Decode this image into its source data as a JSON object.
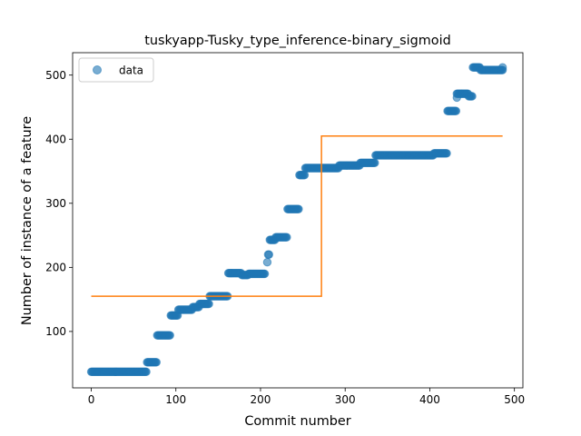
{
  "chart_data": {
    "type": "scatter",
    "title": "tuskyapp-Tusky_type_inference-binary_sigmoid",
    "xlabel": "Commit number",
    "ylabel": "Number of instance of a feature",
    "xlim": [
      -22,
      510
    ],
    "ylim": [
      12,
      535
    ],
    "x_ticks": [
      0,
      100,
      200,
      300,
      400,
      500
    ],
    "y_ticks": [
      100,
      200,
      300,
      400,
      500
    ],
    "grid": false,
    "legend": {
      "position": "top-left",
      "entries": [
        "data"
      ]
    },
    "series": [
      {
        "name": "data",
        "kind": "points",
        "color": "#1f77b4",
        "segments": [
          {
            "x_start": 0,
            "x_end": 66,
            "y": 37
          },
          {
            "x_start": 66,
            "x_end": 78,
            "y": 52
          },
          {
            "x_start": 78,
            "x_end": 94,
            "y": 94
          },
          {
            "x_start": 94,
            "x_end": 103,
            "y": 125
          },
          {
            "x_start": 103,
            "x_end": 120,
            "y": 134
          },
          {
            "x_start": 120,
            "x_end": 128,
            "y": 138
          },
          {
            "x_start": 128,
            "x_end": 140,
            "y": 143
          },
          {
            "x_start": 140,
            "x_end": 162,
            "y": 155
          },
          {
            "x_start": 162,
            "x_end": 178,
            "y": 191
          },
          {
            "x_start": 178,
            "x_end": 186,
            "y": 188
          },
          {
            "x_start": 186,
            "x_end": 206,
            "y": 190
          },
          {
            "x_start": 209,
            "x_end": 211,
            "y": 220
          },
          {
            "x_start": 211,
            "x_end": 218,
            "y": 243
          },
          {
            "x_start": 218,
            "x_end": 232,
            "y": 247
          },
          {
            "x_start": 232,
            "x_end": 246,
            "y": 291
          },
          {
            "x_start": 246,
            "x_end": 253,
            "y": 344
          },
          {
            "x_start": 253,
            "x_end": 293,
            "y": 355
          },
          {
            "x_start": 293,
            "x_end": 318,
            "y": 359
          },
          {
            "x_start": 318,
            "x_end": 336,
            "y": 363
          },
          {
            "x_start": 336,
            "x_end": 405,
            "y": 375
          },
          {
            "x_start": 405,
            "x_end": 421,
            "y": 378
          },
          {
            "x_start": 421,
            "x_end": 432,
            "y": 444
          },
          {
            "x_start": 432,
            "x_end": 446,
            "y": 471
          },
          {
            "x_start": 446,
            "x_end": 451,
            "y": 467
          },
          {
            "x_start": 451,
            "x_end": 460,
            "y": 512
          },
          {
            "x_start": 460,
            "x_end": 487,
            "y": 508
          }
        ],
        "extra_points": [
          {
            "x": 208,
            "y": 208
          },
          {
            "x": 432,
            "y": 465
          },
          {
            "x": 486,
            "y": 512
          }
        ]
      },
      {
        "kind": "line",
        "color": "#ff7f0e",
        "x": [
          0,
          272,
          272,
          486
        ],
        "y": [
          155,
          155,
          405,
          405
        ]
      }
    ]
  }
}
